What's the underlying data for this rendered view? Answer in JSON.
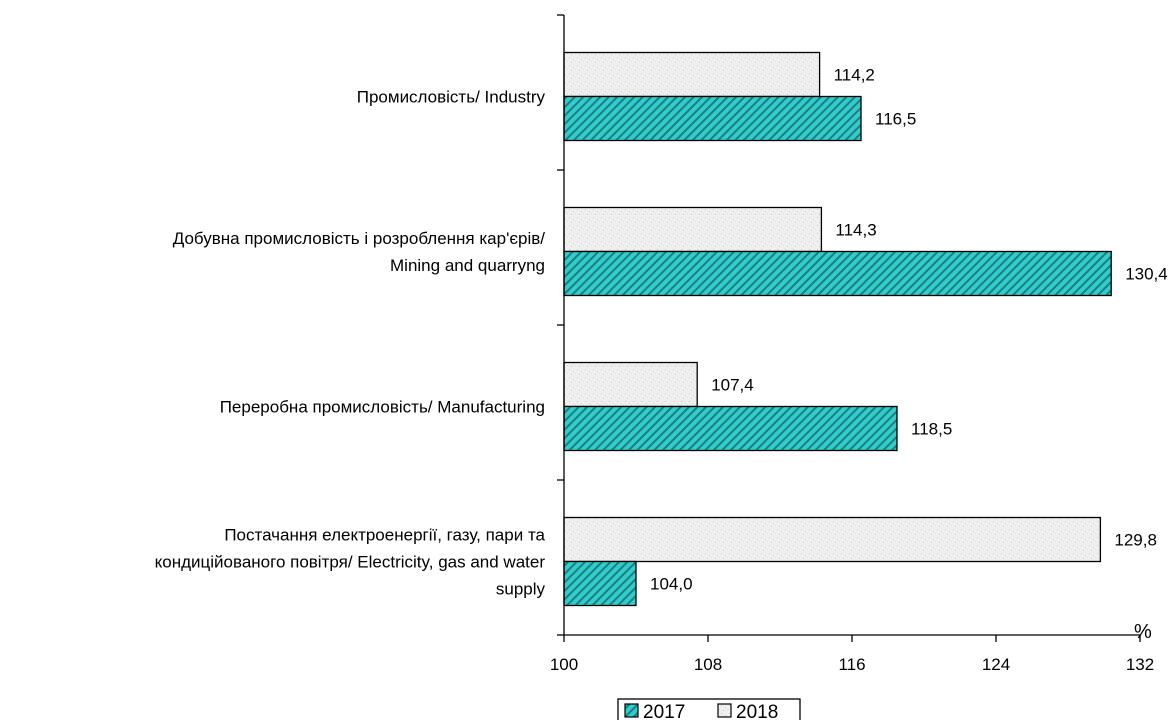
{
  "chart_data": {
    "type": "bar",
    "orientation": "horizontal",
    "categories": [
      [
        "Промисловість/ Industry"
      ],
      [
        "Добувна промисловість і розроблення кар'єрів/",
        "Mining and quarryng"
      ],
      [
        "Переробна промисловість/ Manufacturing"
      ],
      [
        "Постачання електроенергії, газу, пари та",
        "кондиційованого повітря/ Electricity, gas and water",
        "supply"
      ]
    ],
    "series": [
      {
        "name": "2017",
        "values": [
          116.5,
          130.4,
          118.5,
          104.0
        ],
        "labels": [
          "116,5",
          "130,4",
          "118,5",
          "104,0"
        ],
        "color": "#33CCCC",
        "pattern": "diagonal-hatch"
      },
      {
        "name": "2018",
        "values": [
          114.2,
          114.3,
          107.4,
          129.8
        ],
        "labels": [
          "114,2",
          "114,3",
          "107,4",
          "129,8"
        ],
        "color": "#EDEDED",
        "pattern": "speckle"
      }
    ],
    "xlim": [
      100,
      132
    ],
    "xticks": [
      "100",
      "108",
      "116",
      "124",
      "132"
    ],
    "xtick_values": [
      100,
      108,
      116,
      124,
      132
    ],
    "xunit": "%",
    "legend": "bottom-center",
    "grid": false
  }
}
